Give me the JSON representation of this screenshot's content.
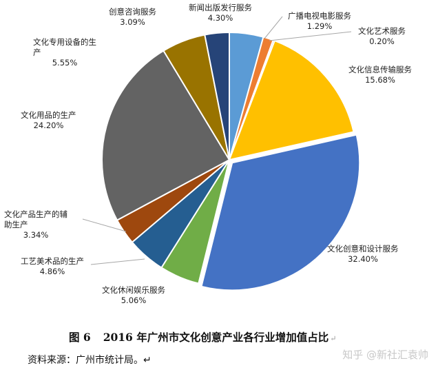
{
  "chart_data": {
    "type": "pie",
    "title": "",
    "slices": [
      {
        "label": "新闻出版发行服务",
        "pct_text": "4.30%",
        "value": 4.3,
        "color": "#5b9bd5"
      },
      {
        "label": "广播电视电影服务",
        "pct_text": "1.29%",
        "value": 1.29,
        "color": "#ed7d31"
      },
      {
        "label": "文化艺术服务",
        "pct_text": "0.20%",
        "value": 0.2,
        "color": "#a5a5a5"
      },
      {
        "label": "文化信息传输服务",
        "pct_text": "15.68%",
        "value": 15.68,
        "color": "#ffc000"
      },
      {
        "label": "文化创意和设计服务",
        "pct_text": "32.40%",
        "value": 32.4,
        "color": "#4472c4"
      },
      {
        "label": "文化休闲娱乐服务",
        "pct_text": "5.06%",
        "value": 5.06,
        "color": "#70ad47"
      },
      {
        "label": "工艺美术品的生产",
        "pct_text": "4.86%",
        "value": 4.86,
        "color": "#255e91"
      },
      {
        "label": "文化产品生产的辅助生产",
        "pct_text": "3.34%",
        "value": 3.34,
        "color": "#9e480e"
      },
      {
        "label": "文化用品的生产",
        "pct_text": "24.20%",
        "value": 24.2,
        "color": "#636363"
      },
      {
        "label": "文化专用设备的生产",
        "pct_text": "5.55%",
        "value": 5.55,
        "color": "#997300"
      },
      {
        "label": "创意咨询服务",
        "pct_text": "3.09%",
        "value": 3.09,
        "color": "#264478"
      }
    ]
  },
  "caption": {
    "number": "图 6",
    "text": "2016 年广州市文化创意产业各行业增加值占比",
    "para_mark": "↵"
  },
  "source_note": "资料来源：广州市统计局。↵",
  "watermark": "知乎 @新社汇袁帅"
}
